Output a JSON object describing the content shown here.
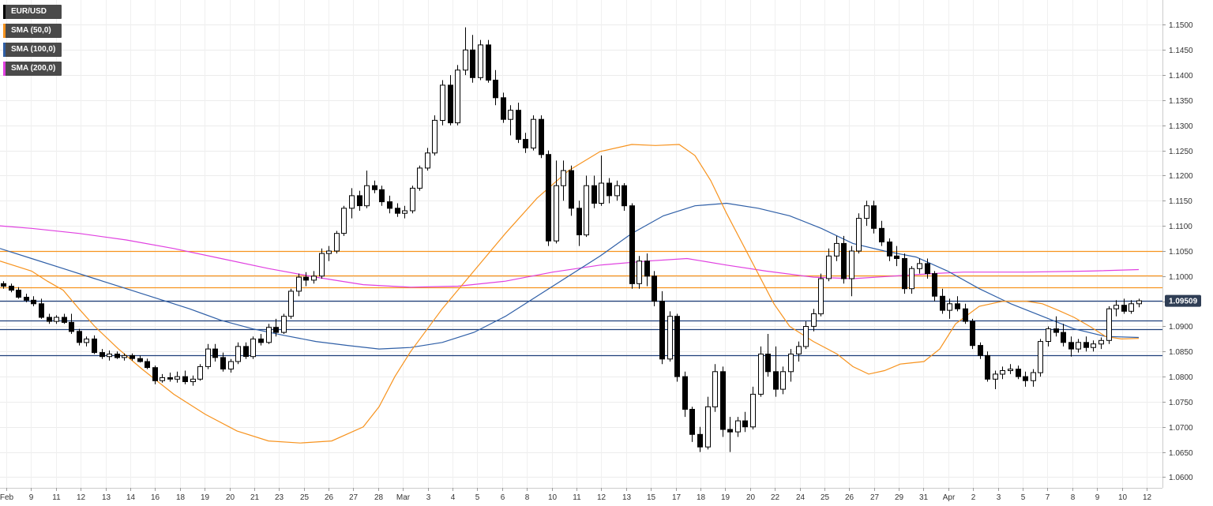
{
  "legend": [
    {
      "label": "EUR/USD",
      "color": "#000000"
    },
    {
      "label": "SMA (50,0)",
      "color": "#f7931e"
    },
    {
      "label": "SMA (100,0)",
      "color": "#2f5fa7"
    },
    {
      "label": "SMA (200,0)",
      "color": "#e040e0"
    }
  ],
  "last_price_label": "1.09509",
  "chart_data": {
    "type": "candlestick",
    "symbol": "EUR/USD",
    "y_ticks": [
      "1.0600",
      "1.0650",
      "1.0700",
      "1.0750",
      "1.0800",
      "1.0850",
      "1.0900",
      "1.0950",
      "1.1000",
      "1.1050",
      "1.1100",
      "1.1150",
      "1.1200",
      "1.1250",
      "1.1300",
      "1.1350",
      "1.1400",
      "1.1450",
      "1.1500"
    ],
    "ylim": [
      1.0585,
      1.154
    ],
    "x_ticks": [
      "Feb",
      "9",
      "11",
      "12",
      "13",
      "14",
      "16",
      "18",
      "19",
      "20",
      "21",
      "23",
      "25",
      "26",
      "27",
      "28",
      "Mar",
      "3",
      "4",
      "5",
      "6",
      "8",
      "10",
      "11",
      "12",
      "13",
      "15",
      "17",
      "18",
      "19",
      "20",
      "22",
      "24",
      "25",
      "26",
      "27",
      "29",
      "31",
      "Apr",
      "2",
      "3",
      "5",
      "7",
      "8",
      "9",
      "10",
      "12"
    ],
    "horizontal_levels": [
      {
        "value": 1.105,
        "color": "#f7931e"
      },
      {
        "value": 1.1002,
        "color": "#f7931e"
      },
      {
        "value": 1.0978,
        "color": "#f7931e"
      },
      {
        "value": 1.0951,
        "color": "#1f3f7a"
      },
      {
        "value": 1.0912,
        "color": "#1f3f7a"
      },
      {
        "value": 1.0895,
        "color": "#1f3f7a"
      },
      {
        "value": 1.0842,
        "color": "#1f3f7a"
      }
    ],
    "last_price": 1.09509,
    "candles": [
      [
        1.0985,
        1.099,
        1.0975,
        1.098
      ],
      [
        1.098,
        1.0985,
        1.0968,
        1.0972
      ],
      [
        1.0972,
        1.0978,
        1.0955,
        1.0958
      ],
      [
        1.0958,
        1.0965,
        1.0948,
        1.0952
      ],
      [
        1.0952,
        1.096,
        1.094,
        1.0945
      ],
      [
        1.0945,
        1.0955,
        1.0915,
        1.0918
      ],
      [
        1.0918,
        1.0925,
        1.0905,
        1.091
      ],
      [
        1.091,
        1.0922,
        1.0905,
        1.0918
      ],
      [
        1.0918,
        1.0925,
        1.0905,
        1.0908
      ],
      [
        1.0908,
        1.0925,
        1.0885,
        1.089
      ],
      [
        1.089,
        1.0895,
        1.0862,
        1.0868
      ],
      [
        1.0868,
        1.088,
        1.086,
        1.0875
      ],
      [
        1.0875,
        1.0882,
        1.0845,
        1.0848
      ],
      [
        1.0848,
        1.0855,
        1.0835,
        1.084
      ],
      [
        1.084,
        1.0852,
        1.0832,
        1.0845
      ],
      [
        1.0845,
        1.085,
        1.0835,
        1.0838
      ],
      [
        1.0838,
        1.0846,
        1.0832,
        1.0842
      ],
      [
        1.0842,
        1.0846,
        1.0832,
        1.0836
      ],
      [
        1.0836,
        1.0842,
        1.0828,
        1.083
      ],
      [
        1.083,
        1.0836,
        1.0815,
        1.0818
      ],
      [
        1.0818,
        1.0822,
        1.0785,
        1.0792
      ],
      [
        1.0792,
        1.0805,
        1.0788,
        1.0798
      ],
      [
        1.0798,
        1.0808,
        1.079,
        1.0795
      ],
      [
        1.0795,
        1.081,
        1.0788,
        1.08
      ],
      [
        1.08,
        1.0812,
        1.0785,
        1.079
      ],
      [
        1.079,
        1.0802,
        1.0782,
        1.0795
      ],
      [
        1.0795,
        1.0825,
        1.0792,
        1.082
      ],
      [
        1.082,
        1.0865,
        1.0815,
        1.0855
      ],
      [
        1.0855,
        1.0865,
        1.083,
        1.0838
      ],
      [
        1.0838,
        1.0848,
        1.081,
        1.0815
      ],
      [
        1.0815,
        1.0835,
        1.0808,
        1.083
      ],
      [
        1.083,
        1.0868,
        1.0825,
        1.086
      ],
      [
        1.086,
        1.0868,
        1.0835,
        1.084
      ],
      [
        1.084,
        1.088,
        1.0835,
        1.0875
      ],
      [
        1.0875,
        1.0885,
        1.0862,
        1.0868
      ],
      [
        1.0868,
        1.0905,
        1.0865,
        1.0898
      ],
      [
        1.0898,
        1.0915,
        1.088,
        1.0888
      ],
      [
        1.0888,
        1.0925,
        1.0885,
        1.092
      ],
      [
        1.092,
        1.0975,
        1.0915,
        1.097
      ],
      [
        1.097,
        1.1005,
        1.096,
        1.0998
      ],
      [
        1.0998,
        1.1008,
        1.098,
        1.0992
      ],
      [
        1.0992,
        1.101,
        1.0985,
        1.1
      ],
      [
        1.1,
        1.1055,
        1.0995,
        1.1045
      ],
      [
        1.1045,
        1.106,
        1.103,
        1.105
      ],
      [
        1.105,
        1.109,
        1.1045,
        1.1085
      ],
      [
        1.1085,
        1.114,
        1.108,
        1.1135
      ],
      [
        1.1135,
        1.1175,
        1.1115,
        1.116
      ],
      [
        1.116,
        1.117,
        1.113,
        1.114
      ],
      [
        1.114,
        1.121,
        1.1135,
        1.118
      ],
      [
        1.118,
        1.119,
        1.1165,
        1.1172
      ],
      [
        1.1172,
        1.118,
        1.114,
        1.1148
      ],
      [
        1.1148,
        1.116,
        1.1125,
        1.1135
      ],
      [
        1.1135,
        1.1145,
        1.1118,
        1.1125
      ],
      [
        1.1125,
        1.114,
        1.1115,
        1.113
      ],
      [
        1.113,
        1.118,
        1.1125,
        1.1175
      ],
      [
        1.1175,
        1.122,
        1.117,
        1.1215
      ],
      [
        1.1215,
        1.1255,
        1.121,
        1.1245
      ],
      [
        1.1245,
        1.132,
        1.124,
        1.131
      ],
      [
        1.131,
        1.139,
        1.13,
        1.138
      ],
      [
        1.138,
        1.14,
        1.13,
        1.1305
      ],
      [
        1.1305,
        1.142,
        1.13,
        1.141
      ],
      [
        1.141,
        1.1495,
        1.14,
        1.145
      ],
      [
        1.145,
        1.148,
        1.1385,
        1.1395
      ],
      [
        1.1395,
        1.147,
        1.139,
        1.146
      ],
      [
        1.146,
        1.147,
        1.1385,
        1.139
      ],
      [
        1.139,
        1.141,
        1.134,
        1.1355
      ],
      [
        1.1355,
        1.1365,
        1.1305,
        1.1312
      ],
      [
        1.1312,
        1.134,
        1.128,
        1.133
      ],
      [
        1.133,
        1.1345,
        1.1265,
        1.1272
      ],
      [
        1.1272,
        1.1285,
        1.1245,
        1.1255
      ],
      [
        1.1255,
        1.132,
        1.125,
        1.1312
      ],
      [
        1.1312,
        1.132,
        1.1235,
        1.1242
      ],
      [
        1.1242,
        1.125,
        1.106,
        1.107
      ],
      [
        1.107,
        1.123,
        1.1065,
        1.118
      ],
      [
        1.118,
        1.123,
        1.115,
        1.121
      ],
      [
        1.121,
        1.122,
        1.112,
        1.1135
      ],
      [
        1.1135,
        1.115,
        1.106,
        1.1082
      ],
      [
        1.1082,
        1.12,
        1.1078,
        1.118
      ],
      [
        1.118,
        1.12,
        1.1135,
        1.1145
      ],
      [
        1.1145,
        1.124,
        1.114,
        1.1185
      ],
      [
        1.1185,
        1.1195,
        1.1145,
        1.116
      ],
      [
        1.116,
        1.119,
        1.115,
        1.118
      ],
      [
        1.118,
        1.1185,
        1.113,
        1.114
      ],
      [
        1.114,
        1.1145,
        1.0975,
        1.0985
      ],
      [
        1.0985,
        1.104,
        1.0975,
        1.103
      ],
      [
        1.103,
        1.1045,
        1.098,
        1.1
      ],
      [
        1.1,
        1.101,
        1.094,
        1.095
      ],
      [
        1.095,
        1.097,
        1.0825,
        1.0835
      ],
      [
        1.0835,
        1.093,
        1.083,
        1.092
      ],
      [
        1.092,
        1.0925,
        1.079,
        1.08
      ],
      [
        1.08,
        1.081,
        1.072,
        1.0735
      ],
      [
        1.0735,
        1.074,
        1.067,
        1.0685
      ],
      [
        1.0685,
        1.07,
        1.065,
        1.066
      ],
      [
        1.066,
        1.076,
        1.0655,
        1.074
      ],
      [
        1.074,
        1.0825,
        1.073,
        1.081
      ],
      [
        1.081,
        1.082,
        1.068,
        1.0695
      ],
      [
        1.0695,
        1.072,
        1.065,
        1.069
      ],
      [
        1.069,
        1.072,
        1.068,
        1.0712
      ],
      [
        1.0712,
        1.073,
        1.069,
        1.07
      ],
      [
        1.07,
        1.078,
        1.0695,
        1.0765
      ],
      [
        1.0765,
        1.086,
        1.076,
        1.0845
      ],
      [
        1.0845,
        1.0885,
        1.08,
        1.081
      ],
      [
        1.081,
        1.086,
        1.076,
        1.0775
      ],
      [
        1.0775,
        1.082,
        1.0765,
        1.081
      ],
      [
        1.081,
        1.0855,
        1.079,
        1.0845
      ],
      [
        1.0845,
        1.087,
        1.083,
        1.086
      ],
      [
        1.086,
        1.091,
        1.0855,
        1.09
      ],
      [
        1.09,
        1.0935,
        1.089,
        1.0925
      ],
      [
        1.0925,
        1.1005,
        1.092,
        1.0995
      ],
      [
        1.0995,
        1.1055,
        1.099,
        1.104
      ],
      [
        1.104,
        1.108,
        1.103,
        1.1065
      ],
      [
        1.1065,
        1.108,
        1.0985,
        1.0995
      ],
      [
        1.0995,
        1.106,
        1.096,
        1.105
      ],
      [
        1.105,
        1.1125,
        1.1045,
        1.1115
      ],
      [
        1.1115,
        1.115,
        1.11,
        1.114
      ],
      [
        1.114,
        1.115,
        1.1085,
        1.1095
      ],
      [
        1.1095,
        1.111,
        1.106,
        1.1068
      ],
      [
        1.1068,
        1.1075,
        1.103,
        1.104
      ],
      [
        1.104,
        1.106,
        1.102,
        1.1035
      ],
      [
        1.1035,
        1.1045,
        1.0965,
        1.0975
      ],
      [
        1.0975,
        1.102,
        1.0965,
        1.1015
      ],
      [
        1.1015,
        1.1035,
        1.1005,
        1.1025
      ],
      [
        1.1025,
        1.1035,
        1.0995,
        1.1005
      ],
      [
        1.1005,
        1.101,
        1.095,
        1.096
      ],
      [
        1.096,
        1.0975,
        1.0925,
        1.0932
      ],
      [
        1.0932,
        1.0955,
        1.0915,
        1.0945
      ],
      [
        1.0945,
        1.096,
        1.093,
        1.0935
      ],
      [
        1.0935,
        1.0945,
        1.0905,
        1.091
      ],
      [
        1.091,
        1.0915,
        1.0855,
        1.0862
      ],
      [
        1.0862,
        1.0868,
        1.0835,
        1.0842
      ],
      [
        1.0842,
        1.085,
        1.079,
        1.0795
      ],
      [
        1.0795,
        1.0812,
        1.0775,
        1.0805
      ],
      [
        1.0805,
        1.082,
        1.0795,
        1.0812
      ],
      [
        1.0812,
        1.0825,
        1.0805,
        1.0815
      ],
      [
        1.0815,
        1.0822,
        1.0795,
        1.08
      ],
      [
        1.08,
        1.081,
        1.078,
        1.0792
      ],
      [
        1.0792,
        1.0815,
        1.078,
        1.0808
      ],
      [
        1.0808,
        1.0875,
        1.08,
        1.087
      ],
      [
        1.087,
        1.09,
        1.086,
        1.0895
      ],
      [
        1.0895,
        1.092,
        1.088,
        1.0888
      ],
      [
        1.0888,
        1.0905,
        1.086,
        1.0868
      ],
      [
        1.0868,
        1.088,
        1.084,
        1.0855
      ],
      [
        1.0855,
        1.0875,
        1.0848,
        1.0868
      ],
      [
        1.0868,
        1.088,
        1.085,
        1.0858
      ],
      [
        1.0858,
        1.0872,
        1.085,
        1.0865
      ],
      [
        1.0865,
        1.0878,
        1.0855,
        1.0872
      ],
      [
        1.0872,
        1.094,
        1.0865,
        1.0935
      ],
      [
        1.0935,
        1.0952,
        1.092,
        1.0942
      ],
      [
        1.0942,
        1.0955,
        1.0925,
        1.093
      ],
      [
        1.093,
        1.0952,
        1.0925,
        1.0945
      ],
      [
        1.0945,
        1.0955,
        1.0938,
        1.0951
      ]
    ],
    "sma_50": [
      [
        0,
        1.103
      ],
      [
        20,
        1.102
      ],
      [
        40,
        1.101
      ],
      [
        60,
        1.099
      ],
      [
        80,
        1.0972
      ],
      [
        100,
        1.0935
      ],
      [
        120,
        1.09
      ],
      [
        150,
        1.0855
      ],
      [
        180,
        1.0815
      ],
      [
        220,
        1.0765
      ],
      [
        260,
        1.0725
      ],
      [
        300,
        1.0692
      ],
      [
        340,
        1.0672
      ],
      [
        380,
        1.0668
      ],
      [
        420,
        1.0672
      ],
      [
        460,
        1.07
      ],
      [
        480,
        1.074
      ],
      [
        500,
        1.08
      ],
      [
        520,
        1.085
      ],
      [
        560,
        1.0935
      ],
      [
        600,
        1.101
      ],
      [
        640,
        1.1085
      ],
      [
        680,
        1.1155
      ],
      [
        720,
        1.121
      ],
      [
        760,
        1.1248
      ],
      [
        800,
        1.1262
      ],
      [
        830,
        1.126
      ],
      [
        860,
        1.1262
      ],
      [
        880,
        1.124
      ],
      [
        900,
        1.119
      ],
      [
        920,
        1.1125
      ],
      [
        950,
        1.1035
      ],
      [
        980,
        1.0945
      ],
      [
        1000,
        1.09
      ],
      [
        1030,
        1.087
      ],
      [
        1060,
        1.0845
      ],
      [
        1080,
        1.082
      ],
      [
        1100,
        1.0805
      ],
      [
        1120,
        1.0812
      ],
      [
        1140,
        1.0825
      ],
      [
        1170,
        1.083
      ],
      [
        1190,
        1.0855
      ],
      [
        1210,
        1.0905
      ],
      [
        1240,
        1.094
      ],
      [
        1270,
        1.095
      ],
      [
        1300,
        1.095
      ],
      [
        1320,
        1.0945
      ],
      [
        1340,
        1.0932
      ],
      [
        1360,
        1.0918
      ],
      [
        1380,
        1.09
      ],
      [
        1400,
        1.088
      ],
      [
        1420,
        1.0875
      ],
      [
        1442,
        1.0876
      ]
    ],
    "sma_100": [
      [
        0,
        1.1055
      ],
      [
        40,
        1.1035
      ],
      [
        80,
        1.1015
      ],
      [
        120,
        1.0995
      ],
      [
        160,
        1.0975
      ],
      [
        200,
        1.0955
      ],
      [
        240,
        1.0935
      ],
      [
        280,
        1.0912
      ],
      [
        320,
        1.0895
      ],
      [
        360,
        1.0882
      ],
      [
        400,
        1.087
      ],
      [
        440,
        1.0862
      ],
      [
        480,
        1.0855
      ],
      [
        520,
        1.0858
      ],
      [
        560,
        1.0868
      ],
      [
        600,
        1.0888
      ],
      [
        640,
        1.092
      ],
      [
        680,
        1.096
      ],
      [
        720,
        1.1
      ],
      [
        760,
        1.104
      ],
      [
        800,
        1.1085
      ],
      [
        840,
        1.112
      ],
      [
        880,
        1.114
      ],
      [
        920,
        1.1145
      ],
      [
        960,
        1.1135
      ],
      [
        1000,
        1.112
      ],
      [
        1040,
        1.1095
      ],
      [
        1080,
        1.1065
      ],
      [
        1120,
        1.105
      ],
      [
        1160,
        1.1038
      ],
      [
        1200,
        1.101
      ],
      [
        1240,
        1.0975
      ],
      [
        1280,
        1.0945
      ],
      [
        1320,
        1.092
      ],
      [
        1360,
        1.0895
      ],
      [
        1400,
        1.088
      ],
      [
        1442,
        1.0878
      ]
    ],
    "sma_200": [
      [
        0,
        1.11
      ],
      [
        40,
        1.1095
      ],
      [
        100,
        1.1085
      ],
      [
        160,
        1.1072
      ],
      [
        220,
        1.1055
      ],
      [
        280,
        1.1035
      ],
      [
        340,
        1.1015
      ],
      [
        400,
        1.0998
      ],
      [
        460,
        1.0983
      ],
      [
        520,
        1.0978
      ],
      [
        580,
        1.098
      ],
      [
        640,
        1.099
      ],
      [
        700,
        1.1008
      ],
      [
        760,
        1.1022
      ],
      [
        820,
        1.103
      ],
      [
        870,
        1.1035
      ],
      [
        920,
        1.1022
      ],
      [
        970,
        1.101
      ],
      [
        1030,
        1.0998
      ],
      [
        1080,
        1.0995
      ],
      [
        1130,
        1.1
      ],
      [
        1180,
        1.1005
      ],
      [
        1220,
        1.1008
      ],
      [
        1300,
        1.1008
      ],
      [
        1380,
        1.101
      ],
      [
        1442,
        1.1013
      ]
    ]
  }
}
